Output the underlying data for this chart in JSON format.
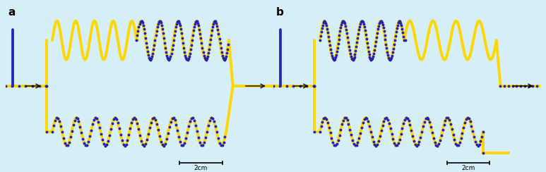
{
  "bg_color": "#d6eef5",
  "yellow": "#FFD700",
  "blue": "#2222BB",
  "ylw_lw": 2.8,
  "blu_lw": 1.2,
  "fig_w": 7.73,
  "fig_h": 2.44,
  "label_a": "a",
  "label_b": "b",
  "scalebar": "2cm"
}
